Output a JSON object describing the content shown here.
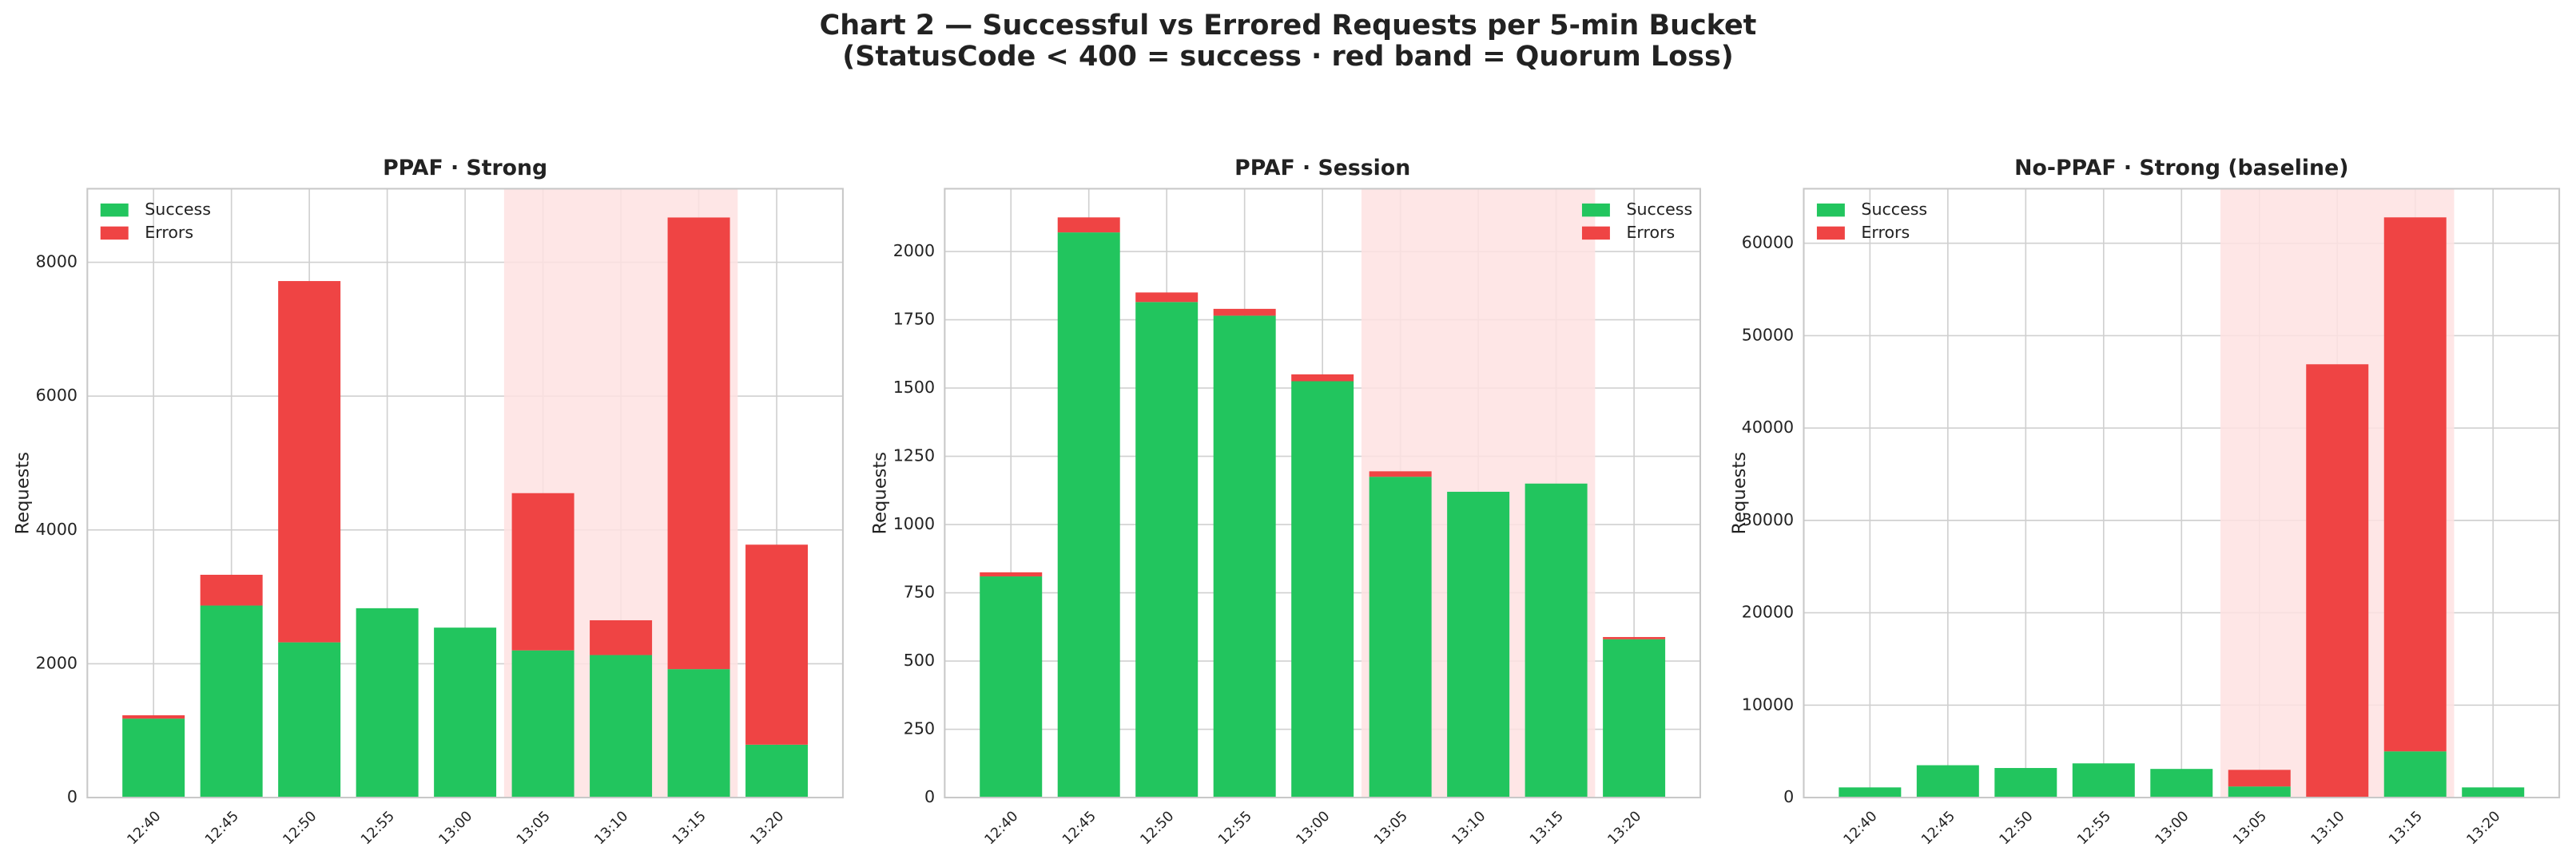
{
  "page_title": [
    "Chart 2 — Successful vs Errored Requests per 5-min Bucket",
    "(StatusCode < 400 = success · red band = Quorum Loss)"
  ],
  "chart_data": [
    {
      "type": "bar",
      "stacked": true,
      "title": "PPAF · Strong",
      "y_label": "Requests",
      "categories": [
        "12:40",
        "12:45",
        "12:50",
        "12:55",
        "13:00",
        "13:05",
        "13:10",
        "13:15",
        "13:20"
      ],
      "series": [
        {
          "name": "Success",
          "color": "#22c55e",
          "values": [
            1180,
            2870,
            2320,
            2830,
            2540,
            2200,
            2130,
            1920,
            790
          ]
        },
        {
          "name": "Errors",
          "color": "#ef4444",
          "values": [
            50,
            460,
            5400,
            0,
            0,
            2350,
            520,
            6750,
            2990
          ]
        }
      ],
      "ylim": [
        0,
        9100
      ],
      "yticks": [
        0,
        2000,
        4000,
        6000,
        8000
      ],
      "grid": true,
      "legend": "upper left",
      "highlight": {
        "from": "13:05",
        "to": "13:15",
        "color": "#fee2e2"
      }
    },
    {
      "type": "bar",
      "stacked": true,
      "title": "PPAF · Session",
      "y_label": "Requests",
      "categories": [
        "12:40",
        "12:45",
        "12:50",
        "12:55",
        "13:00",
        "13:05",
        "13:10",
        "13:15",
        "13:20"
      ],
      "series": [
        {
          "name": "Success",
          "color": "#22c55e",
          "values": [
            810,
            2070,
            1815,
            1765,
            1525,
            1175,
            1120,
            1150,
            580
          ]
        },
        {
          "name": "Errors",
          "color": "#ef4444",
          "values": [
            15,
            55,
            35,
            25,
            25,
            20,
            0,
            0,
            8
          ]
        }
      ],
      "ylim": [
        0,
        2230
      ],
      "yticks": [
        0,
        250,
        500,
        750,
        1000,
        1250,
        1500,
        1750,
        2000
      ],
      "grid": true,
      "legend": "upper right",
      "highlight": {
        "from": "13:05",
        "to": "13:15",
        "color": "#fee2e2"
      }
    },
    {
      "type": "bar",
      "stacked": true,
      "title": "No-PPAF · Strong (baseline)",
      "y_label": "Requests",
      "categories": [
        "12:40",
        "12:45",
        "12:50",
        "12:55",
        "13:00",
        "13:05",
        "13:10",
        "13:15",
        "13:20"
      ],
      "series": [
        {
          "name": "Success",
          "color": "#22c55e",
          "values": [
            1100,
            3500,
            3200,
            3700,
            3100,
            1200,
            0,
            5000,
            1100
          ]
        },
        {
          "name": "Errors",
          "color": "#ef4444",
          "values": [
            0,
            0,
            0,
            0,
            0,
            1800,
            46900,
            57800,
            0
          ]
        }
      ],
      "ylim": [
        0,
        65900
      ],
      "yticks": [
        0,
        10000,
        20000,
        30000,
        40000,
        50000,
        60000
      ],
      "grid": true,
      "legend": "upper left",
      "highlight": {
        "from": "13:05",
        "to": "13:15",
        "color": "#fee2e2"
      }
    }
  ]
}
